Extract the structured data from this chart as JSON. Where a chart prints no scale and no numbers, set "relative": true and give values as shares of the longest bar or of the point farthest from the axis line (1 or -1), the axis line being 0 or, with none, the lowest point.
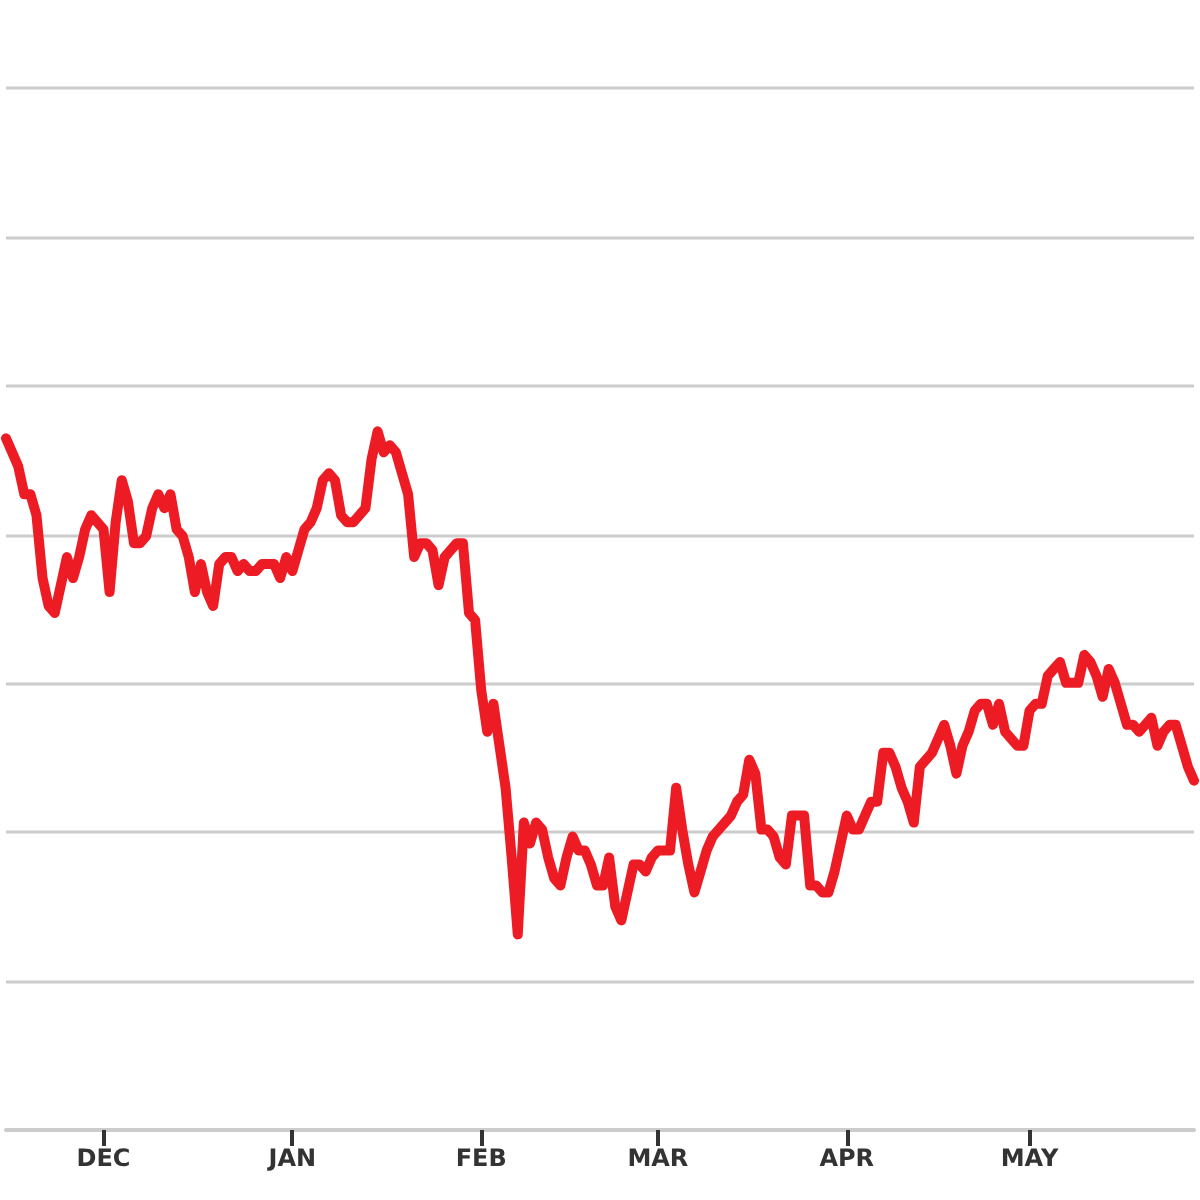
{
  "chart_data": {
    "type": "line",
    "relative": true,
    "grid": "y",
    "marker": "none",
    "line_style": "solid",
    "categories": [
      null,
      null,
      null,
      null,
      null,
      null,
      null,
      null,
      null,
      null,
      null,
      null,
      null,
      null,
      null,
      null,
      "DEC",
      null,
      null,
      null,
      null,
      null,
      null,
      null,
      null,
      null,
      null,
      null,
      null,
      null,
      null,
      null,
      null,
      null,
      null,
      null,
      null,
      null,
      null,
      null,
      null,
      null,
      null,
      null,
      null,
      null,
      null,
      "JAN",
      null,
      null,
      null,
      null,
      null,
      null,
      null,
      null,
      null,
      null,
      null,
      null,
      null,
      null,
      null,
      null,
      null,
      null,
      null,
      null,
      null,
      null,
      null,
      null,
      null,
      null,
      null,
      null,
      null,
      null,
      "FEB",
      null,
      null,
      null,
      null,
      null,
      null,
      null,
      null,
      null,
      null,
      null,
      null,
      null,
      null,
      null,
      null,
      null,
      null,
      null,
      null,
      null,
      null,
      null,
      null,
      null,
      null,
      null,
      null,
      "MAR",
      null,
      null,
      null,
      null,
      null,
      null,
      null,
      null,
      null,
      null,
      null,
      null,
      null,
      null,
      null,
      null,
      null,
      null,
      null,
      null,
      null,
      null,
      null,
      null,
      null,
      null,
      null,
      null,
      null,
      null,
      "APR",
      null,
      null,
      null,
      null,
      null,
      null,
      null,
      null,
      null,
      null,
      null,
      null,
      null,
      null,
      null,
      null,
      null,
      null,
      null,
      null,
      null,
      null,
      null,
      null,
      null,
      null,
      null,
      null,
      null,
      "MAY",
      null,
      null,
      null,
      null,
      null,
      null,
      null,
      null,
      null,
      null,
      null,
      null,
      null,
      null,
      null,
      null,
      null,
      null,
      null,
      null,
      null,
      null,
      null,
      null,
      null,
      null,
      null
    ],
    "series": [
      {
        "color": "#ed1c24",
        "values": [
          0.99,
          0.97,
          0.95,
          0.91,
          0.91,
          0.88,
          0.79,
          0.75,
          0.74,
          0.78,
          0.82,
          0.79,
          0.82,
          0.86,
          0.88,
          0.87,
          0.86,
          0.77,
          0.87,
          0.93,
          0.9,
          0.84,
          0.84,
          0.85,
          0.89,
          0.91,
          0.89,
          0.91,
          0.86,
          0.85,
          0.82,
          0.77,
          0.81,
          0.77,
          0.75,
          0.81,
          0.82,
          0.82,
          0.8,
          0.81,
          0.8,
          0.8,
          0.81,
          0.81,
          0.81,
          0.79,
          0.82,
          0.8,
          0.83,
          0.86,
          0.87,
          0.89,
          0.93,
          0.94,
          0.93,
          0.88,
          0.87,
          0.87,
          0.88,
          0.89,
          0.96,
          1.0,
          0.97,
          0.98,
          0.97,
          0.94,
          0.91,
          0.82,
          0.84,
          0.84,
          0.83,
          0.78,
          0.82,
          0.83,
          0.84,
          0.84,
          0.74,
          0.73,
          0.63,
          0.57,
          0.61,
          0.55,
          0.49,
          0.39,
          0.28,
          0.44,
          0.41,
          0.44,
          0.43,
          0.39,
          0.36,
          0.35,
          0.39,
          0.42,
          0.4,
          0.4,
          0.38,
          0.35,
          0.35,
          0.39,
          0.32,
          0.3,
          0.34,
          0.38,
          0.38,
          0.37,
          0.39,
          0.4,
          0.4,
          0.4,
          0.49,
          0.43,
          0.38,
          0.34,
          0.37,
          0.4,
          0.42,
          0.43,
          0.44,
          0.45,
          0.47,
          0.48,
          0.53,
          0.51,
          0.43,
          0.43,
          0.42,
          0.39,
          0.38,
          0.45,
          0.45,
          0.45,
          0.35,
          0.35,
          0.34,
          0.34,
          0.37,
          0.41,
          0.45,
          0.43,
          0.43,
          0.45,
          0.47,
          0.47,
          0.54,
          0.54,
          0.52,
          0.49,
          0.47,
          0.44,
          0.52,
          0.53,
          0.54,
          0.56,
          0.58,
          0.55,
          0.51,
          0.55,
          0.57,
          0.6,
          0.61,
          0.61,
          0.58,
          0.61,
          0.57,
          0.56,
          0.55,
          0.55,
          0.6,
          0.61,
          0.61,
          0.65,
          0.66,
          0.67,
          0.64,
          0.64,
          0.64,
          0.68,
          0.67,
          0.65,
          0.62,
          0.66,
          0.64,
          0.61,
          0.58,
          0.58,
          0.57,
          0.58,
          0.59,
          0.55,
          0.57,
          0.58,
          0.58,
          0.55,
          0.52,
          0.5
        ]
      }
    ]
  }
}
